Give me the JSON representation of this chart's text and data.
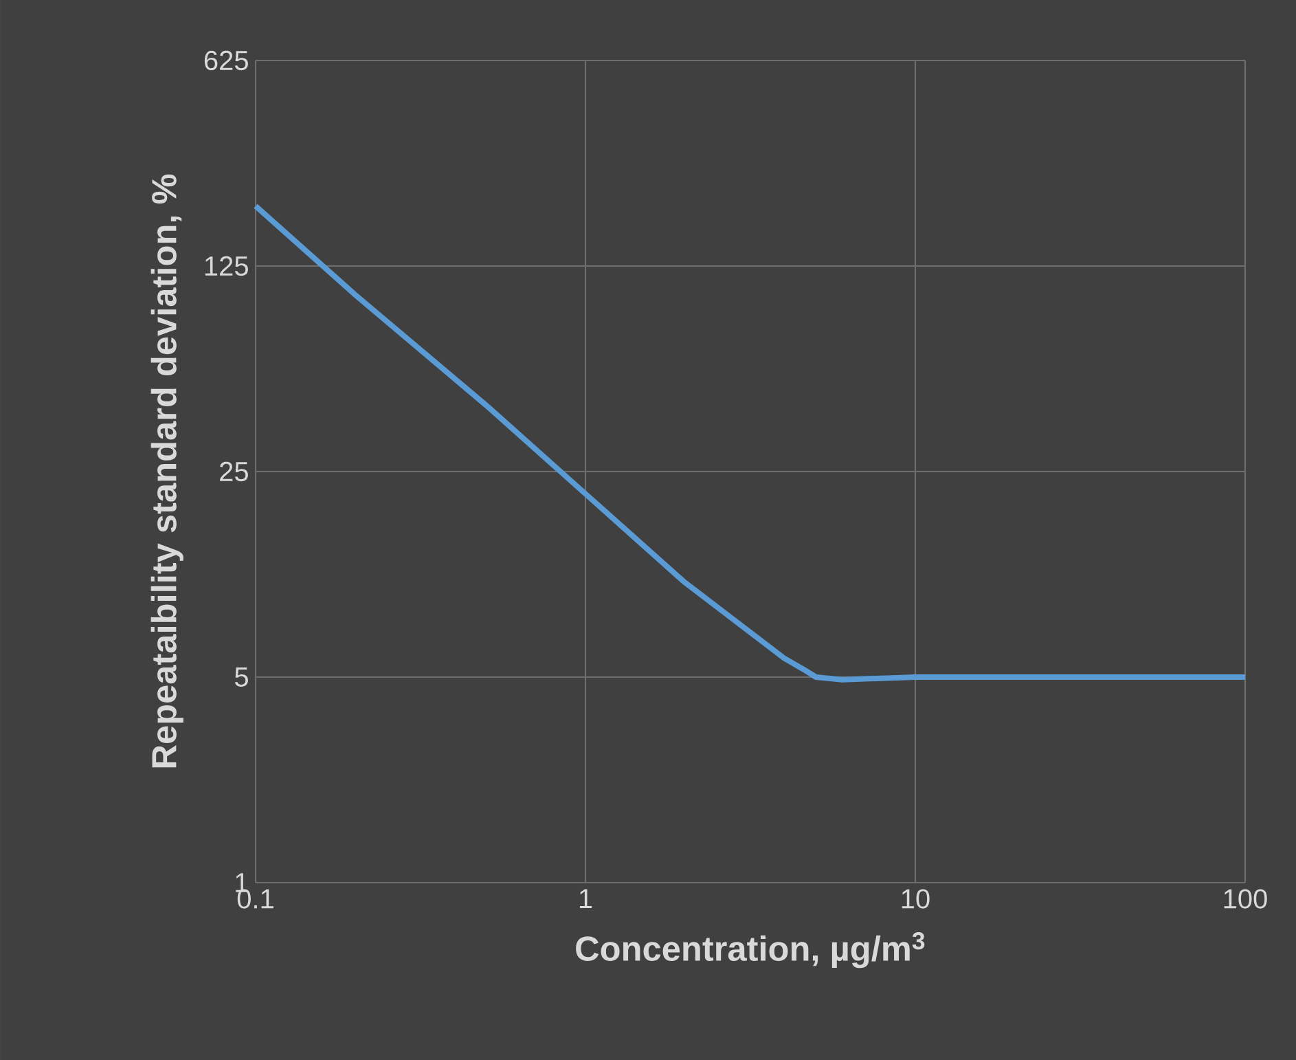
{
  "chart_data": {
    "type": "line",
    "xlabel": "Concentration, µg/m$^{3}$",
    "ylabel": "Repeataibility standard deviation, %",
    "log": "xy",
    "grid": true,
    "marker": "none",
    "line_style": "solid",
    "xlim": [
      0.1,
      100
    ],
    "xticks": [
      0.1,
      1,
      10,
      100
    ],
    "ylim": [
      1,
      625
    ],
    "yticks": [
      1,
      5,
      25,
      125,
      625
    ],
    "series": [
      {
        "color": "#5b9bd5",
        "x": [
          0.1,
          0.2,
          0.5,
          1,
          2,
          4,
          4.6,
          5,
          6,
          10,
          30,
          100
        ],
        "values": [
          200,
          100,
          42,
          21,
          10.5,
          5.8,
          5.3,
          5.0,
          4.9,
          5,
          5,
          5
        ]
      }
    ]
  }
}
